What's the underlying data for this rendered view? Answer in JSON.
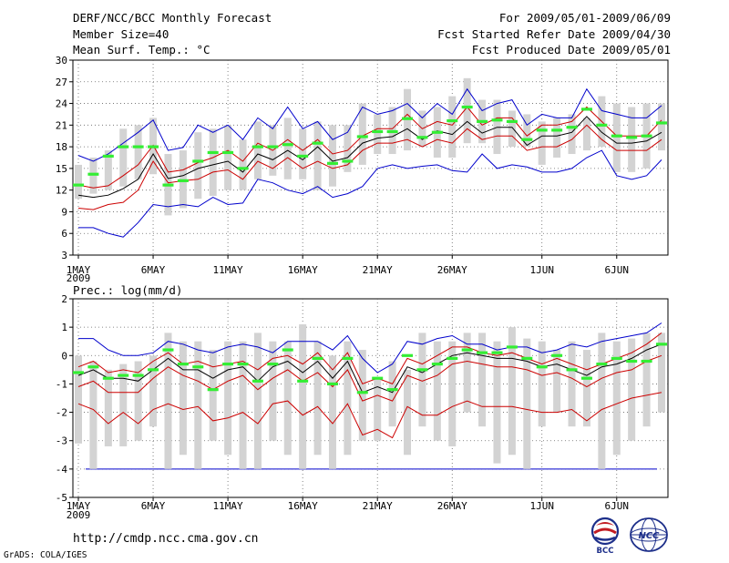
{
  "header": {
    "title": "DERF/NCC/BCC Monthly Forecast",
    "member_size": "Member Size=40",
    "variable": "Mean Surf. Temp.: °C",
    "for_period": "For 2009/05/01-2009/06/09",
    "fcst_started": "Fcst Started Refer Date 2009/04/30",
    "fcst_produced": "Fcst Produced Date 2009/05/01"
  },
  "footer": {
    "url": "http://cmdp.ncc.cma.gov.cn",
    "credit": "GrADS: COLA/IGES",
    "logo_bcc": "BCC",
    "logo_ncc": "NCC"
  },
  "colors": {
    "box": "#d3d3d3",
    "green": "#33ee33",
    "mean": "#000000",
    "red": "#cc0000",
    "blue": "#0000cc"
  },
  "chart_data": [
    {
      "type": "line",
      "title": "Mean Surf. Temp.: °C",
      "ylim": [
        3,
        30
      ],
      "yticks": [
        3,
        6,
        9,
        12,
        15,
        18,
        21,
        24,
        27,
        30
      ],
      "xtick_labels": [
        "1MAY",
        "6MAY",
        "11MAY",
        "16MAY",
        "21MAY",
        "26MAY",
        "1JUN",
        "6JUN"
      ],
      "xtick_days": [
        1,
        6,
        11,
        16,
        21,
        26,
        32,
        37
      ],
      "year_label": "2009",
      "days": [
        1,
        2,
        3,
        4,
        5,
        6,
        7,
        8,
        9,
        10,
        11,
        12,
        13,
        14,
        15,
        16,
        17,
        18,
        19,
        20,
        21,
        22,
        23,
        24,
        25,
        26,
        27,
        28,
        29,
        30,
        31,
        32,
        33,
        34,
        35,
        36,
        37,
        38,
        39,
        40
      ],
      "box_low": [
        10.8,
        11.5,
        12.0,
        12.5,
        13.5,
        14.2,
        8.5,
        9.5,
        10.8,
        11.2,
        12.0,
        12.0,
        13.5,
        14.0,
        13.5,
        13.5,
        12.0,
        12.5,
        14.5,
        15.5,
        17.0,
        17.0,
        17.5,
        18.0,
        16.5,
        16.5,
        18.5,
        18.5,
        17.0,
        18.0,
        18.0,
        15.5,
        16.5,
        17.0,
        17.5,
        18.0,
        14.5,
        14.5,
        15.0,
        17.5
      ],
      "box_high": [
        15.5,
        16.5,
        17.5,
        20.5,
        21.0,
        22.0,
        17.0,
        17.5,
        20.0,
        20.5,
        21.0,
        19.0,
        21.5,
        21.0,
        22.0,
        20.5,
        21.5,
        21.0,
        21.0,
        24.0,
        22.5,
        23.5,
        26.0,
        23.0,
        23.5,
        25.0,
        27.5,
        24.5,
        24.5,
        23.0,
        22.5,
        21.5,
        22.0,
        22.5,
        22.0,
        25.0,
        24.0,
        23.5,
        24.0,
        24.0
      ],
      "green": [
        12.7,
        14.2,
        16.7,
        18.0,
        18.0,
        18.0,
        12.7,
        13.3,
        16.0,
        17.2,
        17.2,
        15.0,
        18.0,
        18.0,
        18.3,
        16.7,
        18.5,
        15.7,
        16.0,
        19.4,
        20.1,
        20.1,
        21.9,
        19.3,
        20.0,
        21.6,
        23.5,
        21.5,
        21.7,
        21.5,
        19.0,
        20.3,
        20.3,
        20.7,
        23.2,
        21.0,
        19.5,
        19.3,
        19.5,
        21.3
      ],
      "series": [
        {
          "name": "upper",
          "color": "blue",
          "values": [
            16.8,
            16.0,
            17.0,
            18.5,
            20.0,
            21.7,
            17.5,
            17.9,
            21.0,
            20.0,
            21.0,
            19.0,
            22.0,
            20.5,
            23.5,
            20.5,
            21.5,
            19.0,
            20.0,
            23.5,
            22.5,
            23.0,
            24.0,
            22.0,
            24.0,
            22.5,
            26.0,
            23.0,
            24.0,
            24.5,
            21.0,
            22.5,
            22.0,
            22.0,
            26.0,
            23.0,
            22.5,
            22.0,
            22.0,
            23.7
          ]
        },
        {
          "name": "mean_plus_sd",
          "color": "red",
          "values": [
            12.7,
            12.3,
            12.6,
            14.0,
            15.5,
            18.2,
            14.5,
            14.8,
            15.8,
            16.5,
            17.5,
            16.0,
            18.5,
            17.5,
            19.0,
            17.5,
            19.0,
            17.0,
            17.5,
            19.5,
            20.5,
            20.5,
            22.5,
            20.5,
            21.5,
            21.0,
            23.5,
            21.0,
            22.0,
            22.0,
            19.5,
            21.0,
            21.0,
            21.5,
            23.5,
            21.5,
            19.5,
            19.5,
            19.5,
            21.7
          ]
        },
        {
          "name": "ensemble_mean",
          "color": "mean",
          "values": [
            11.3,
            11.0,
            11.3,
            12.2,
            13.5,
            17.0,
            13.6,
            14.0,
            15.0,
            15.5,
            16.0,
            14.5,
            17.0,
            16.2,
            17.5,
            16.2,
            18.0,
            16.0,
            16.5,
            18.5,
            19.2,
            19.4,
            20.5,
            19.0,
            20.2,
            19.7,
            21.5,
            19.9,
            20.7,
            20.7,
            18.2,
            19.5,
            19.5,
            20.0,
            22.2,
            20.0,
            18.5,
            18.5,
            18.8,
            20.0
          ]
        },
        {
          "name": "mean_minus_sd",
          "color": "red",
          "values": [
            9.5,
            9.3,
            10.0,
            10.3,
            12.0,
            16.0,
            13.0,
            13.3,
            13.5,
            14.5,
            14.8,
            13.5,
            16.0,
            15.0,
            16.5,
            15.0,
            16.0,
            15.0,
            15.5,
            17.5,
            18.5,
            18.5,
            19.0,
            18.0,
            19.0,
            18.5,
            20.5,
            19.0,
            19.5,
            19.5,
            17.5,
            18.0,
            18.0,
            19.0,
            21.0,
            19.0,
            17.5,
            17.5,
            17.5,
            19.0
          ]
        },
        {
          "name": "lower",
          "color": "blue",
          "values": [
            6.8,
            6.8,
            6.0,
            5.5,
            7.5,
            10.0,
            9.7,
            10.0,
            9.7,
            11.0,
            10.0,
            10.2,
            13.5,
            13.0,
            12.0,
            11.5,
            12.5,
            11.0,
            11.5,
            12.5,
            15.0,
            15.5,
            15.0,
            15.3,
            15.5,
            14.7,
            14.5,
            17.0,
            15.0,
            15.5,
            15.2,
            14.5,
            14.5,
            15.0,
            16.5,
            17.5,
            14.0,
            13.5,
            14.0,
            16.2
          ]
        }
      ]
    },
    {
      "type": "line",
      "title": "Prec.: log(mm/d)",
      "ylim": [
        -5,
        2
      ],
      "yticks": [
        -5,
        -4,
        -3,
        -2,
        -1,
        0,
        1,
        2
      ],
      "xtick_labels": [
        "1MAY",
        "6MAY",
        "11MAY",
        "16MAY",
        "21MAY",
        "26MAY",
        "1JUN",
        "6JUN"
      ],
      "xtick_days": [
        1,
        6,
        11,
        16,
        21,
        26,
        32,
        37
      ],
      "year_label": "2009",
      "reference_line": -4,
      "days": [
        1,
        2,
        3,
        4,
        5,
        6,
        7,
        8,
        9,
        10,
        11,
        12,
        13,
        14,
        15,
        16,
        17,
        18,
        19,
        20,
        21,
        22,
        23,
        24,
        25,
        26,
        27,
        28,
        29,
        30,
        31,
        32,
        33,
        34,
        35,
        36,
        37,
        38,
        39,
        40
      ],
      "box_low": [
        -3.1,
        -4.0,
        -3.2,
        -3.2,
        -3.0,
        -2.5,
        -4.0,
        -3.5,
        -4.0,
        -3.0,
        -3.5,
        -4.0,
        -4.0,
        -3.0,
        -3.5,
        -4.0,
        -3.5,
        -4.0,
        -3.5,
        -3.0,
        -3.0,
        -2.5,
        -3.5,
        -2.5,
        -3.0,
        -3.2,
        -2.0,
        -2.5,
        -3.8,
        -3.5,
        -4.0,
        -2.5,
        -2.0,
        -2.5,
        -2.5,
        -4.0,
        -3.5,
        -3.0,
        -2.5,
        -2.0
      ],
      "box_high": [
        0.0,
        -0.2,
        -0.5,
        -0.3,
        -0.2,
        0.0,
        0.8,
        0.5,
        0.5,
        0.2,
        0.5,
        0.5,
        0.8,
        0.5,
        0.5,
        1.1,
        0.5,
        0.0,
        0.5,
        0.2,
        -0.8,
        -0.2,
        -0.5,
        0.8,
        0.5,
        0.5,
        0.8,
        0.8,
        0.5,
        1.0,
        0.6,
        0.5,
        0.2,
        0.5,
        0.2,
        0.8,
        0.5,
        0.6,
        0.8,
        0.8
      ],
      "green": [
        -0.6,
        -0.4,
        -0.8,
        -0.7,
        -0.7,
        -0.5,
        0.2,
        -0.3,
        -0.4,
        -1.2,
        -0.3,
        -0.3,
        -0.9,
        -0.3,
        0.2,
        -0.9,
        -0.1,
        -1.0,
        -0.1,
        -1.3,
        -0.8,
        -1.2,
        0.0,
        -0.5,
        -0.3,
        -0.1,
        0.2,
        0.1,
        0.1,
        0.3,
        -0.1,
        -0.4,
        0.0,
        -0.5,
        -0.8,
        -0.3,
        -0.1,
        -0.2,
        -0.2,
        0.4
      ],
      "series": [
        {
          "name": "upper",
          "color": "blue",
          "values": [
            0.6,
            0.6,
            0.2,
            0.0,
            0.0,
            0.1,
            0.5,
            0.4,
            0.2,
            0.1,
            0.3,
            0.4,
            0.3,
            0.1,
            0.5,
            0.5,
            0.5,
            0.2,
            0.7,
            -0.1,
            -0.6,
            -0.3,
            0.5,
            0.4,
            0.6,
            0.7,
            0.4,
            0.4,
            0.2,
            0.3,
            0.3,
            0.1,
            0.2,
            0.4,
            0.3,
            0.5,
            0.6,
            0.7,
            0.8,
            1.15
          ]
        },
        {
          "name": "mean_plus_sd",
          "color": "red",
          "values": [
            -0.4,
            -0.2,
            -0.6,
            -0.5,
            -0.6,
            -0.2,
            0.1,
            -0.3,
            -0.2,
            -0.4,
            -0.3,
            -0.2,
            -0.5,
            -0.1,
            0.0,
            -0.3,
            0.1,
            -0.5,
            0.1,
            -1.0,
            -0.8,
            -1.0,
            -0.1,
            -0.3,
            0.0,
            0.3,
            0.3,
            0.1,
            0.0,
            0.1,
            -0.1,
            -0.3,
            -0.1,
            -0.3,
            -0.5,
            -0.3,
            -0.1,
            0.1,
            0.4,
            0.8
          ]
        },
        {
          "name": "ensemble_mean",
          "color": "mean",
          "values": [
            -0.7,
            -0.5,
            -0.8,
            -0.8,
            -0.9,
            -0.5,
            -0.1,
            -0.5,
            -0.5,
            -0.8,
            -0.5,
            -0.4,
            -0.9,
            -0.4,
            -0.2,
            -0.6,
            -0.2,
            -0.8,
            -0.2,
            -1.3,
            -1.1,
            -1.3,
            -0.4,
            -0.6,
            -0.3,
            0.0,
            0.1,
            0.0,
            -0.1,
            -0.1,
            -0.2,
            -0.4,
            -0.3,
            -0.5,
            -0.7,
            -0.4,
            -0.3,
            -0.1,
            0.2,
            0.4
          ]
        },
        {
          "name": "mean_minus_sd",
          "color": "red",
          "values": [
            -1.1,
            -0.9,
            -1.3,
            -1.3,
            -1.3,
            -0.8,
            -0.4,
            -0.7,
            -0.9,
            -1.2,
            -0.9,
            -0.7,
            -1.2,
            -0.8,
            -0.5,
            -0.9,
            -0.6,
            -1.1,
            -0.5,
            -1.6,
            -1.4,
            -1.6,
            -0.7,
            -0.9,
            -0.7,
            -0.3,
            -0.2,
            -0.3,
            -0.4,
            -0.4,
            -0.5,
            -0.7,
            -0.6,
            -0.8,
            -1.1,
            -0.8,
            -0.6,
            -0.5,
            -0.2,
            0.0
          ]
        },
        {
          "name": "lower",
          "color": "red",
          "values": [
            -1.7,
            -1.9,
            -2.4,
            -2.0,
            -2.4,
            -1.9,
            -1.7,
            -1.9,
            -1.8,
            -2.3,
            -2.2,
            -2.0,
            -2.4,
            -1.7,
            -1.6,
            -2.1,
            -1.8,
            -2.4,
            -1.7,
            -2.8,
            -2.6,
            -2.9,
            -1.8,
            -2.1,
            -2.1,
            -1.8,
            -1.6,
            -1.8,
            -1.8,
            -1.8,
            -1.9,
            -2.0,
            -2.0,
            -1.9,
            -2.3,
            -1.9,
            -1.7,
            -1.5,
            -1.4,
            -1.3
          ]
        }
      ]
    }
  ]
}
